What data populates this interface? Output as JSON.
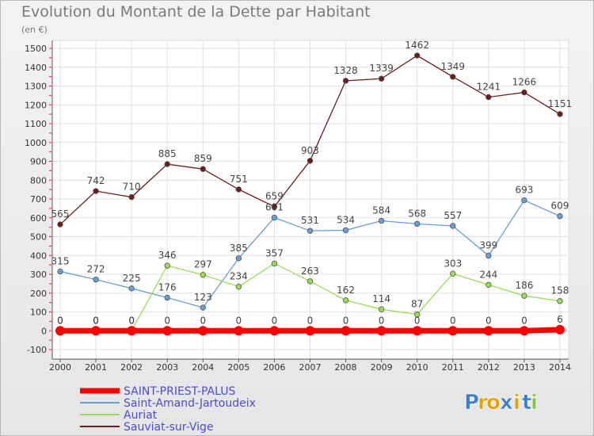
{
  "chart_data": {
    "type": "line",
    "title": "Evolution du Montant de la Dette par Habitant",
    "subtitle": "(en €)",
    "x": [
      "2000",
      "2001",
      "2002",
      "2003",
      "2004",
      "2005",
      "2006",
      "2007",
      "2008",
      "2009",
      "2010",
      "2011",
      "2012",
      "2013",
      "2014"
    ],
    "ylim": [
      -100,
      1500
    ],
    "yticks": [
      -100,
      0,
      100,
      200,
      300,
      400,
      500,
      600,
      700,
      800,
      900,
      1000,
      1100,
      1200,
      1300,
      1400,
      1500
    ],
    "grid": true,
    "legend": "bottom-left",
    "series": [
      {
        "name": "SAINT-PRIEST-PALUS",
        "color": "#ff0000",
        "legend_color": "#4a4adf",
        "values": [
          0,
          0,
          0,
          0,
          0,
          0,
          0,
          0,
          0,
          0,
          0,
          0,
          0,
          0,
          6
        ]
      },
      {
        "name": "Saint-Amand-Jartoudeix",
        "color": "#6a9fd4",
        "legend_color": "#4a4adf",
        "values": [
          315,
          272,
          225,
          176,
          123,
          385,
          601,
          531,
          534,
          584,
          568,
          557,
          399,
          693,
          609
        ]
      },
      {
        "name": "Auriat",
        "color": "#99dd55",
        "legend_color": "#4a4adf",
        "values": [
          0,
          0,
          0,
          346,
          297,
          234,
          357,
          263,
          162,
          114,
          87,
          303,
          244,
          186,
          158
        ]
      },
      {
        "name": "Sauviat-sur-Vige",
        "color": "#6b1c1c",
        "legend_color": "#4a4adf",
        "values": [
          565,
          742,
          710,
          885,
          859,
          751,
          659,
          903,
          1328,
          1339,
          1462,
          1349,
          1241,
          1266,
          1151
        ]
      }
    ]
  },
  "logo": {
    "letters": [
      "P",
      "r",
      "o",
      "x",
      "i",
      "t",
      "i"
    ],
    "colors": [
      "#3a7fd6",
      "#e8a000",
      "#e8a000",
      "#3a7fd6",
      "#e8a000",
      "#3a7fd6",
      "#8ac43d"
    ]
  }
}
